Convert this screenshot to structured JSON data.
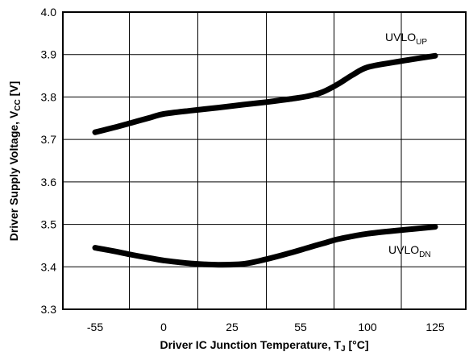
{
  "chart_data": {
    "type": "line",
    "x_ticks": [
      "-55",
      "0",
      "25",
      "55",
      "100",
      "125"
    ],
    "x_tick_values": [
      -55,
      0,
      25,
      55,
      100,
      125
    ],
    "y_ticks": [
      "3.3",
      "3.4",
      "3.5",
      "3.6",
      "3.7",
      "3.8",
      "3.9",
      "4.0"
    ],
    "ylim": [
      3.3,
      4.0
    ],
    "xlabel": {
      "text": "Driver IC Junction Temperature, T",
      "sub": "J",
      "suffix": "[°C]"
    },
    "ylabel": {
      "text": "Driver Supply Voltage, V",
      "sub": "CC",
      "suffix": "[V]"
    },
    "grid": true,
    "series": [
      {
        "name": "UVLO_UP",
        "label": {
          "main": "UVLO",
          "sub": "UP"
        },
        "x": [
          -55,
          -40,
          -25,
          -10,
          0,
          10,
          20,
          30,
          40,
          50,
          60,
          70,
          80,
          90,
          100,
          110,
          125
        ],
        "y": [
          3.717,
          3.728,
          3.74,
          3.752,
          3.76,
          3.768,
          3.775,
          3.782,
          3.788,
          3.795,
          3.802,
          3.812,
          3.83,
          3.852,
          3.87,
          3.882,
          3.897
        ]
      },
      {
        "name": "UVLO_DN",
        "label": {
          "main": "UVLO",
          "sub": "DN"
        },
        "x": [
          -55,
          -40,
          -25,
          -10,
          0,
          10,
          20,
          30,
          40,
          50,
          60,
          70,
          80,
          90,
          100,
          110,
          125
        ],
        "y": [
          3.445,
          3.437,
          3.428,
          3.42,
          3.415,
          3.408,
          3.405,
          3.407,
          3.418,
          3.432,
          3.445,
          3.455,
          3.465,
          3.472,
          3.478,
          3.485,
          3.494
        ]
      }
    ]
  }
}
